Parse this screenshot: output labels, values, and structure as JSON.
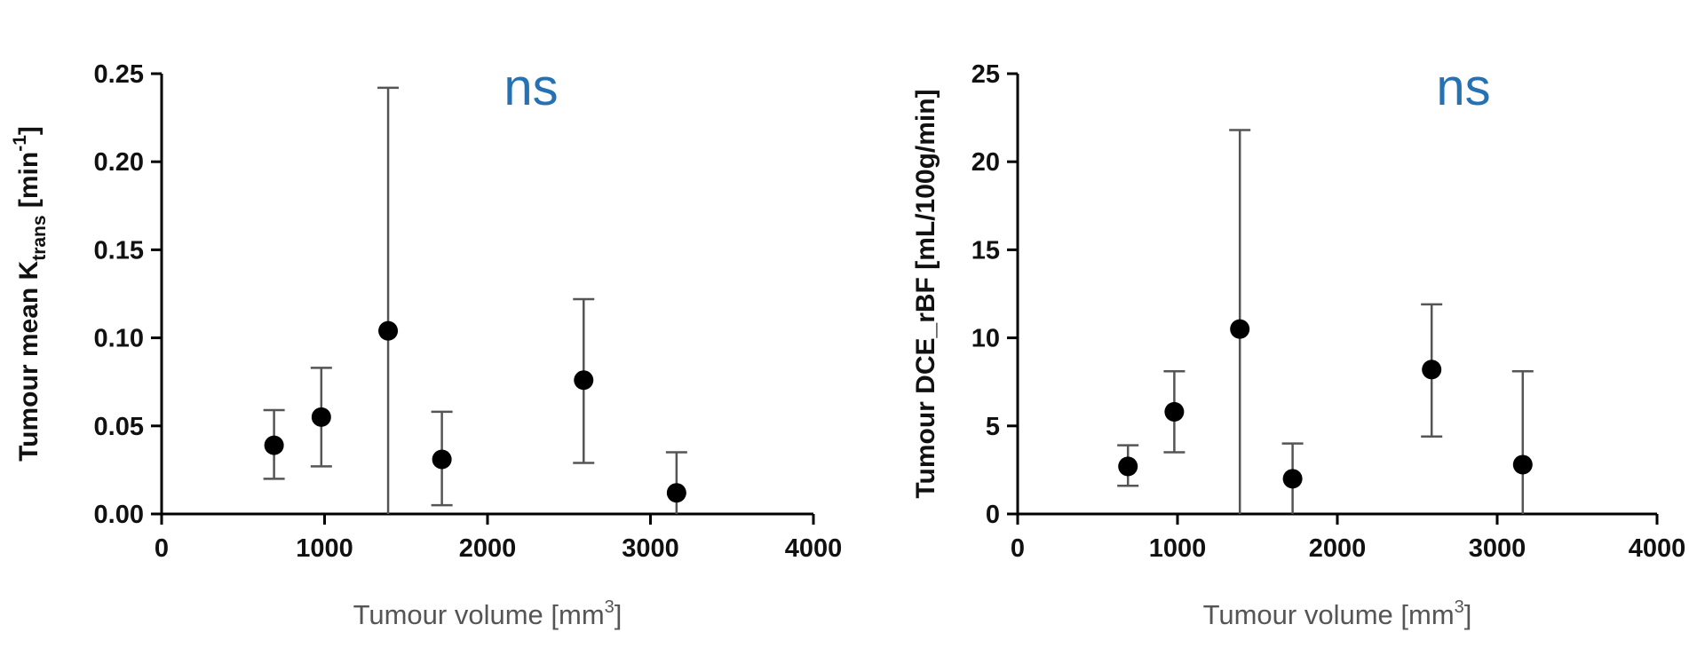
{
  "chart_data": [
    {
      "type": "scatter",
      "title": "",
      "annotation": "ns",
      "annotation_color": "#2472b4",
      "xlabel": {
        "prefix": "Tumour volume [mm",
        "sup": "3",
        "suffix": "]"
      },
      "ylabel": {
        "prefix": "Tumour mean K",
        "sub": "trans",
        "mid": " [min",
        "sup": "-1",
        "suffix": "]"
      },
      "xlim": [
        0,
        4000
      ],
      "ylim": [
        0,
        0.25
      ],
      "xticks": [
        0,
        1000,
        2000,
        3000,
        4000
      ],
      "xtick_labels": [
        "0",
        "1000",
        "2000",
        "3000",
        "4000"
      ],
      "yticks": [
        0,
        0.05,
        0.1,
        0.15,
        0.2,
        0.25
      ],
      "ytick_labels": [
        "0.00",
        "0.05",
        "0.10",
        "0.15",
        "0.20",
        "0.25"
      ],
      "grid": false,
      "error_bars": true,
      "points": [
        {
          "x": 690,
          "y": 0.039,
          "lo": 0.02,
          "hi": 0.059
        },
        {
          "x": 980,
          "y": 0.055,
          "lo": 0.027,
          "hi": 0.083
        },
        {
          "x": 1390,
          "y": 0.104,
          "lo": 0.0,
          "hi": 0.242
        },
        {
          "x": 1720,
          "y": 0.031,
          "lo": 0.005,
          "hi": 0.058
        },
        {
          "x": 2590,
          "y": 0.076,
          "lo": 0.029,
          "hi": 0.122
        },
        {
          "x": 3160,
          "y": 0.012,
          "lo": 0.0,
          "hi": 0.035
        }
      ]
    },
    {
      "type": "scatter",
      "title": "",
      "annotation": "ns",
      "annotation_color": "#2472b4",
      "xlabel": {
        "prefix": "Tumour volume [mm",
        "sup": "3",
        "suffix": "]"
      },
      "ylabel": {
        "prefix": "Tumour DCE_rBF [mL/100g/min]"
      },
      "xlim": [
        0,
        4000
      ],
      "ylim": [
        0,
        25
      ],
      "xticks": [
        0,
        1000,
        2000,
        3000,
        4000
      ],
      "xtick_labels": [
        "0",
        "1000",
        "2000",
        "3000",
        "4000"
      ],
      "yticks": [
        0,
        5,
        10,
        15,
        20,
        25
      ],
      "ytick_labels": [
        "0",
        "5",
        "10",
        "15",
        "20",
        "25"
      ],
      "grid": false,
      "error_bars": true,
      "points": [
        {
          "x": 690,
          "y": 2.7,
          "lo": 1.6,
          "hi": 3.9
        },
        {
          "x": 980,
          "y": 5.8,
          "lo": 3.5,
          "hi": 8.1
        },
        {
          "x": 1390,
          "y": 10.5,
          "lo": 0.0,
          "hi": 21.8
        },
        {
          "x": 1720,
          "y": 2.0,
          "lo": 0.0,
          "hi": 4.0
        },
        {
          "x": 2590,
          "y": 8.2,
          "lo": 4.4,
          "hi": 11.9
        },
        {
          "x": 3160,
          "y": 2.8,
          "lo": 0.0,
          "hi": 8.1
        }
      ]
    }
  ]
}
